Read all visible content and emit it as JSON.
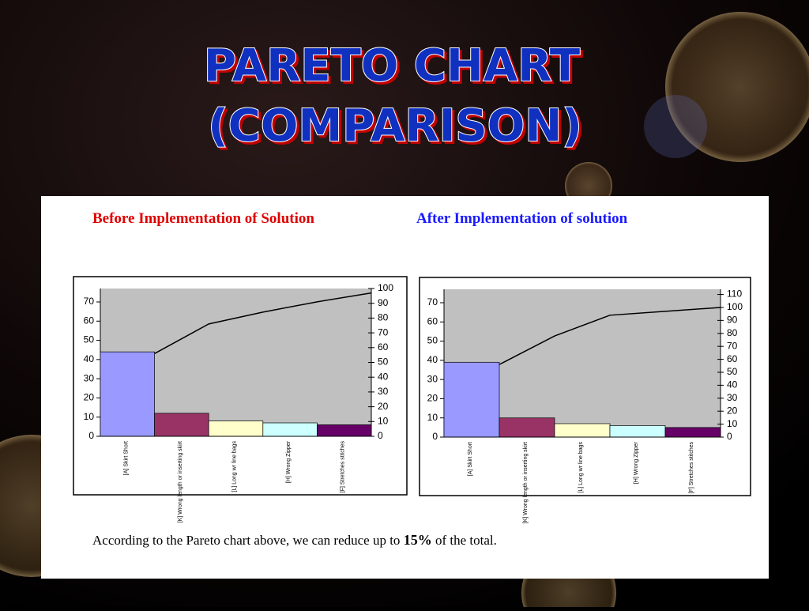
{
  "slide": {
    "title_lines": [
      "PARETO CHART",
      "(COMPARISON)"
    ],
    "caption": [
      "According to the Pareto chart above, we can reduce up to ",
      "15%",
      " of the total."
    ]
  },
  "chart_data": [
    {
      "type": "pareto",
      "title": "Before Implementation of Solution",
      "title_color": "#e00000",
      "categories": [
        "[A] Skirt Short",
        "[K] Wrong length or inserting skirt",
        "[L] Long wr line bags",
        "[H] Wrong Zipper",
        "[F] Stretches stitches"
      ],
      "series": [
        {
          "values": [
            44,
            12,
            8,
            7,
            6
          ],
          "colors": [
            "#9999ff",
            "#993366",
            "#ffffcc",
            "#ccffff",
            "#660066"
          ]
        },
        {
          "values": [
            56,
            76,
            84,
            91,
            97
          ],
          "color": "#000000",
          "axis": "y2"
        }
      ],
      "ylim": [
        0,
        77
      ],
      "yticks": [
        0,
        10,
        20,
        30,
        40,
        50,
        60,
        70
      ],
      "y2lim": [
        0,
        100
      ],
      "y2ticks": [
        0,
        10,
        20,
        30,
        40,
        50,
        60,
        70,
        80,
        90,
        100
      ],
      "plot_color": "#c0c0c0"
    },
    {
      "type": "pareto",
      "title": "After Implementation of solution",
      "title_color": "#1a1aff",
      "categories": [
        "[A] Skirt Short",
        "[K] Wrong length or inserting skirt",
        "[L] Long wr line bags",
        "[H] Wrong Zipper",
        "[F] Stretches stitches"
      ],
      "series": [
        {
          "values": [
            39,
            10,
            7,
            6,
            5
          ],
          "colors": [
            "#9999ff",
            "#993366",
            "#ffffcc",
            "#ccffff",
            "#660066"
          ]
        },
        {
          "values": [
            56,
            78,
            94,
            97,
            100
          ],
          "color": "#000000",
          "axis": "y2"
        }
      ],
      "ylim": [
        0,
        77
      ],
      "yticks": [
        0,
        10,
        20,
        30,
        40,
        50,
        60,
        70
      ],
      "y2lim": [
        0,
        114
      ],
      "y2ticks": [
        0,
        10,
        20,
        30,
        40,
        50,
        60,
        70,
        80,
        90,
        100,
        110
      ],
      "plot_color": "#c0c0c0"
    }
  ]
}
